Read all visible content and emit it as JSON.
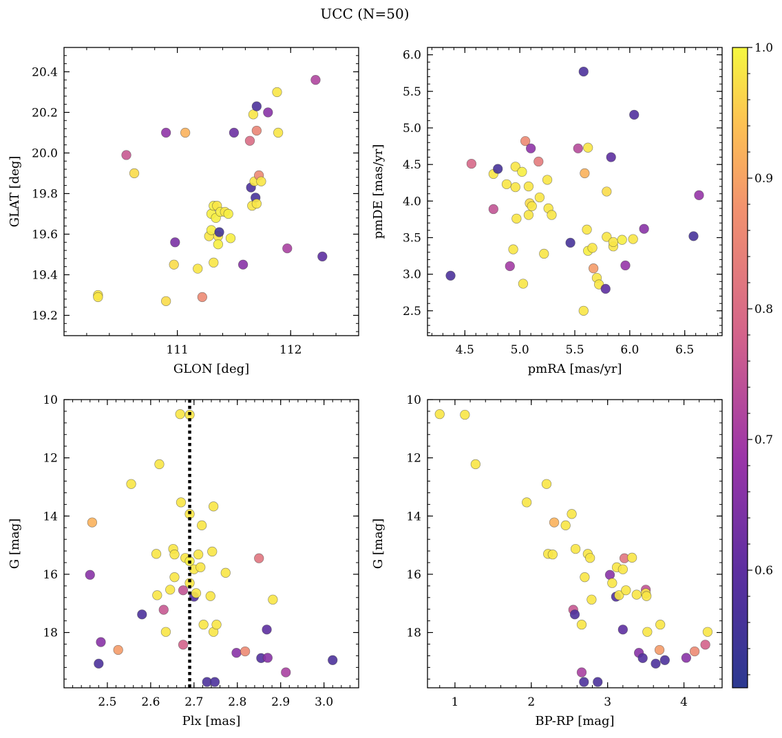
{
  "title": "UCC (N=50)",
  "colorbar": {
    "colormap": "plasma",
    "range": [
      0.51,
      1.0
    ],
    "ticks": [
      "0.6",
      "0.7",
      "0.8",
      "0.9",
      "1.0"
    ],
    "tick_values": [
      0.6,
      0.7,
      0.8,
      0.9,
      1.0
    ]
  },
  "chart_data": [
    {
      "type": "scatter",
      "xlabel": "GLON [deg]",
      "ylabel": "GLAT [deg]",
      "xlim": [
        110.0,
        112.6
      ],
      "ylim": [
        19.1,
        20.52
      ],
      "xticks": [
        111,
        112
      ],
      "xtick_labels": [
        "111",
        "112"
      ],
      "yticks": [
        19.2,
        19.4,
        19.6,
        19.8,
        20.0,
        20.2,
        20.4
      ],
      "ytick_labels": [
        "19.2",
        "19.4",
        "19.6",
        "19.8",
        "20.0",
        "20.2",
        "20.4"
      ],
      "points": [
        [
          110.3,
          19.3,
          0.98
        ],
        [
          110.3,
          19.29,
          0.98
        ],
        [
          110.55,
          19.99,
          0.76
        ],
        [
          110.62,
          19.9,
          0.97
        ],
        [
          110.9,
          20.1,
          0.67
        ],
        [
          110.98,
          19.56,
          0.64
        ],
        [
          111.07,
          20.1,
          0.92
        ],
        [
          110.97,
          19.45,
          0.97
        ],
        [
          110.9,
          19.27,
          0.97
        ],
        [
          111.18,
          19.43,
          0.98
        ],
        [
          111.22,
          19.29,
          0.86
        ],
        [
          111.28,
          19.59,
          0.98
        ],
        [
          111.3,
          19.62,
          0.99
        ],
        [
          111.32,
          19.46,
          0.98
        ],
        [
          111.3,
          19.7,
          0.99
        ],
        [
          111.32,
          19.74,
          0.99
        ],
        [
          111.35,
          19.74,
          0.98
        ],
        [
          111.34,
          19.68,
          0.99
        ],
        [
          111.36,
          19.59,
          0.98
        ],
        [
          111.37,
          19.61,
          0.55
        ],
        [
          111.36,
          19.55,
          0.99
        ],
        [
          111.38,
          19.71,
          0.99
        ],
        [
          111.42,
          19.71,
          0.98
        ],
        [
          111.45,
          19.7,
          0.99
        ],
        [
          111.47,
          19.58,
          0.99
        ],
        [
          111.5,
          20.1,
          0.62
        ],
        [
          111.58,
          19.45,
          0.66
        ],
        [
          111.64,
          20.06,
          0.8
        ],
        [
          111.65,
          19.83,
          0.57
        ],
        [
          111.67,
          20.19,
          0.98
        ],
        [
          111.66,
          19.74,
          0.98
        ],
        [
          111.68,
          19.86,
          0.98
        ],
        [
          111.7,
          20.11,
          0.85
        ],
        [
          111.69,
          19.78,
          0.56
        ],
        [
          111.72,
          19.89,
          0.86
        ],
        [
          111.74,
          19.86,
          0.98
        ],
        [
          111.7,
          19.75,
          0.98
        ],
        [
          111.7,
          20.23,
          0.57
        ],
        [
          111.8,
          20.2,
          0.66
        ],
        [
          111.88,
          20.3,
          0.98
        ],
        [
          111.89,
          20.1,
          0.98
        ],
        [
          111.97,
          19.53,
          0.71
        ],
        [
          112.22,
          20.36,
          0.72
        ],
        [
          112.28,
          19.49,
          0.6
        ]
      ]
    },
    {
      "type": "scatter",
      "xlabel": "pmRA [mas/yr]",
      "ylabel": "pmDE [mas/yr]",
      "xlim": [
        4.16,
        6.84
      ],
      "ylim": [
        2.16,
        6.1
      ],
      "xticks": [
        4.5,
        5.0,
        5.5,
        6.0,
        6.5
      ],
      "xtick_labels": [
        "4.5",
        "5.0",
        "5.5",
        "6.0",
        "6.5"
      ],
      "yticks": [
        2.5,
        3.0,
        3.5,
        4.0,
        4.5,
        5.0,
        5.5,
        6.0
      ],
      "ytick_labels": [
        "2.5",
        "3.0",
        "3.5",
        "4.0",
        "4.5",
        "5.0",
        "5.5",
        "6.0"
      ],
      "points": [
        [
          4.37,
          2.98,
          0.57
        ],
        [
          4.56,
          4.51,
          0.79
        ],
        [
          4.76,
          4.37,
          0.98
        ],
        [
          4.8,
          4.44,
          0.56
        ],
        [
          4.76,
          3.89,
          0.75
        ],
        [
          4.88,
          4.23,
          0.98
        ],
        [
          4.91,
          3.11,
          0.7
        ],
        [
          4.94,
          3.34,
          0.98
        ],
        [
          4.96,
          4.47,
          0.98
        ],
        [
          4.96,
          4.19,
          0.98
        ],
        [
          4.97,
          3.76,
          0.98
        ],
        [
          5.02,
          4.4,
          0.99
        ],
        [
          5.03,
          2.87,
          0.98
        ],
        [
          5.05,
          4.82,
          0.86
        ],
        [
          5.08,
          4.2,
          0.98
        ],
        [
          5.08,
          3.81,
          0.98
        ],
        [
          5.1,
          4.72,
          0.67
        ],
        [
          5.09,
          3.97,
          0.97
        ],
        [
          5.11,
          3.93,
          0.98
        ],
        [
          5.17,
          4.54,
          0.83
        ],
        [
          5.18,
          4.05,
          0.98
        ],
        [
          5.22,
          3.28,
          0.98
        ],
        [
          5.25,
          4.29,
          0.98
        ],
        [
          5.26,
          3.9,
          0.98
        ],
        [
          5.29,
          3.81,
          0.98
        ],
        [
          5.46,
          3.43,
          0.56
        ],
        [
          5.53,
          4.72,
          0.73
        ],
        [
          5.58,
          5.77,
          0.57
        ],
        [
          5.59,
          4.38,
          0.92
        ],
        [
          5.58,
          2.5,
          0.98
        ],
        [
          5.61,
          3.61,
          0.98
        ],
        [
          5.62,
          4.73,
          0.98
        ],
        [
          5.62,
          3.32,
          0.99
        ],
        [
          5.66,
          3.36,
          0.98
        ],
        [
          5.67,
          3.08,
          0.89
        ],
        [
          5.7,
          2.95,
          0.98
        ],
        [
          5.72,
          2.86,
          0.98
        ],
        [
          5.78,
          2.8,
          0.6
        ],
        [
          5.79,
          4.13,
          0.97
        ],
        [
          5.79,
          3.51,
          0.98
        ],
        [
          5.83,
          4.6,
          0.6
        ],
        [
          5.85,
          3.38,
          0.98
        ],
        [
          5.85,
          3.44,
          0.98
        ],
        [
          5.93,
          3.47,
          0.99
        ],
        [
          5.96,
          3.12,
          0.68
        ],
        [
          6.03,
          3.48,
          0.98
        ],
        [
          6.04,
          5.18,
          0.58
        ],
        [
          6.13,
          3.62,
          0.66
        ],
        [
          6.58,
          3.52,
          0.56
        ],
        [
          6.63,
          4.08,
          0.68
        ]
      ]
    },
    {
      "type": "scatter",
      "xlabel": "Plx [mas]",
      "ylabel": "G [mag]",
      "xlim": [
        2.4,
        3.08
      ],
      "ylim": [
        19.9,
        10.0
      ],
      "xticks": [
        2.5,
        2.6,
        2.7,
        2.8,
        2.9,
        3.0
      ],
      "xtick_labels": [
        "2.5",
        "2.6",
        "2.7",
        "2.8",
        "2.9",
        "3.0"
      ],
      "yticks": [
        10,
        12,
        14,
        16,
        18
      ],
      "ytick_labels": [
        "10",
        "12",
        "14",
        "16",
        "18"
      ],
      "vline": {
        "x": 2.69,
        "style": "dotted"
      },
      "points": [
        [
          2.46,
          16.02,
          0.66
        ],
        [
          2.465,
          14.22,
          0.92
        ],
        [
          2.48,
          19.07,
          0.57
        ],
        [
          2.485,
          18.33,
          0.66
        ],
        [
          2.525,
          18.6,
          0.89
        ],
        [
          2.555,
          12.9,
          0.98
        ],
        [
          2.58,
          17.38,
          0.57
        ],
        [
          2.613,
          15.3,
          0.98
        ],
        [
          2.615,
          16.72,
          0.98
        ],
        [
          2.62,
          12.22,
          0.98
        ],
        [
          2.63,
          17.22,
          0.76
        ],
        [
          2.635,
          17.98,
          0.98
        ],
        [
          2.645,
          16.53,
          0.98
        ],
        [
          2.652,
          15.13,
          0.98
        ],
        [
          2.655,
          15.32,
          0.98
        ],
        [
          2.655,
          16.1,
          0.98
        ],
        [
          2.668,
          10.5,
          0.98
        ],
        [
          2.67,
          13.53,
          0.98
        ],
        [
          2.675,
          16.55,
          0.75
        ],
        [
          2.675,
          18.42,
          0.78
        ],
        [
          2.68,
          15.44,
          0.98
        ],
        [
          2.69,
          10.52,
          0.98
        ],
        [
          2.69,
          13.93,
          0.98
        ],
        [
          2.69,
          15.55,
          0.99
        ],
        [
          2.69,
          16.3,
          0.98
        ],
        [
          2.7,
          15.83,
          0.98
        ],
        [
          2.7,
          16.77,
          0.58
        ],
        [
          2.705,
          16.65,
          0.98
        ],
        [
          2.71,
          15.32,
          0.98
        ],
        [
          2.715,
          15.76,
          0.98
        ],
        [
          2.718,
          14.32,
          0.98
        ],
        [
          2.722,
          17.73,
          0.98
        ],
        [
          2.73,
          19.7,
          0.57
        ],
        [
          2.738,
          16.75,
          0.98
        ],
        [
          2.742,
          15.22,
          0.98
        ],
        [
          2.745,
          13.67,
          0.98
        ],
        [
          2.745,
          17.98,
          0.98
        ],
        [
          2.748,
          19.7,
          0.57
        ],
        [
          2.752,
          17.73,
          0.98
        ],
        [
          2.773,
          15.95,
          0.98
        ],
        [
          2.798,
          18.7,
          0.66
        ],
        [
          2.818,
          18.65,
          0.86
        ],
        [
          2.85,
          15.45,
          0.82
        ],
        [
          2.855,
          18.88,
          0.58
        ],
        [
          2.868,
          17.9,
          0.6
        ],
        [
          2.87,
          18.87,
          0.66
        ],
        [
          2.882,
          16.87,
          0.98
        ],
        [
          2.912,
          19.37,
          0.71
        ],
        [
          3.02,
          18.95,
          0.57
        ]
      ]
    },
    {
      "type": "scatter",
      "xlabel": "BP-RP [mag]",
      "ylabel": "G [mag]",
      "xlim": [
        0.64,
        4.5
      ],
      "ylim": [
        19.9,
        10.0
      ],
      "xticks": [
        1,
        2,
        3,
        4
      ],
      "xtick_labels": [
        "1",
        "2",
        "3",
        "4"
      ],
      "yticks": [
        10,
        12,
        14,
        16,
        18
      ],
      "ytick_labels": [
        "10",
        "12",
        "14",
        "16",
        "18"
      ],
      "points": [
        [
          0.8,
          10.5,
          0.98
        ],
        [
          1.13,
          10.52,
          0.98
        ],
        [
          1.27,
          12.22,
          0.98
        ],
        [
          1.94,
          13.53,
          0.98
        ],
        [
          2.2,
          12.9,
          0.98
        ],
        [
          2.22,
          15.3,
          0.98
        ],
        [
          2.28,
          15.32,
          0.98
        ],
        [
          2.3,
          14.22,
          0.92
        ],
        [
          2.45,
          14.32,
          0.98
        ],
        [
          2.53,
          13.93,
          0.98
        ],
        [
          2.55,
          17.22,
          0.76
        ],
        [
          2.57,
          17.38,
          0.57
        ],
        [
          2.58,
          15.13,
          0.98
        ],
        [
          2.66,
          17.73,
          0.98
        ],
        [
          2.66,
          19.37,
          0.71
        ],
        [
          2.69,
          19.7,
          0.57
        ],
        [
          2.7,
          16.1,
          0.98
        ],
        [
          2.74,
          15.3,
          0.98
        ],
        [
          2.77,
          15.44,
          0.98
        ],
        [
          2.79,
          16.87,
          0.98
        ],
        [
          2.87,
          19.7,
          0.57
        ],
        [
          3.03,
          16.02,
          0.66
        ],
        [
          3.06,
          16.3,
          0.98
        ],
        [
          3.11,
          16.77,
          0.58
        ],
        [
          3.12,
          15.76,
          0.98
        ],
        [
          3.15,
          16.72,
          0.98
        ],
        [
          3.2,
          15.83,
          0.98
        ],
        [
          3.2,
          17.9,
          0.6
        ],
        [
          3.22,
          15.45,
          0.82
        ],
        [
          3.24,
          16.55,
          0.98
        ],
        [
          3.32,
          15.43,
          0.98
        ],
        [
          3.38,
          16.7,
          0.98
        ],
        [
          3.41,
          18.7,
          0.66
        ],
        [
          3.46,
          18.88,
          0.58
        ],
        [
          3.5,
          16.53,
          0.75
        ],
        [
          3.5,
          16.65,
          0.98
        ],
        [
          3.51,
          16.75,
          0.98
        ],
        [
          3.52,
          17.98,
          0.98
        ],
        [
          3.63,
          19.07,
          0.57
        ],
        [
          3.68,
          18.6,
          0.89
        ],
        [
          3.69,
          17.73,
          0.98
        ],
        [
          3.75,
          18.95,
          0.57
        ],
        [
          4.03,
          18.87,
          0.66
        ],
        [
          4.14,
          18.65,
          0.86
        ],
        [
          4.28,
          18.42,
          0.78
        ],
        [
          4.31,
          17.98,
          0.98
        ]
      ]
    }
  ]
}
